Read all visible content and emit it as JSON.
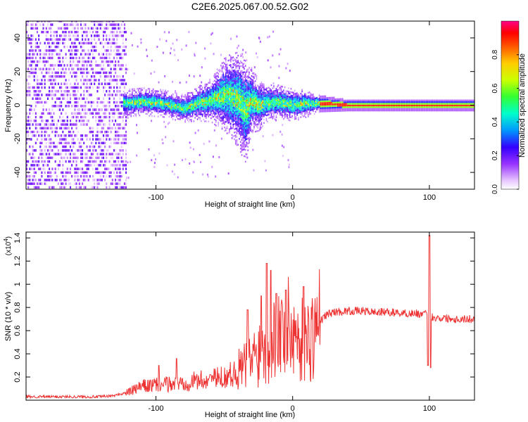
{
  "figure_title": "C2E6.2025.067.00.52.G02",
  "chart_data": [
    {
      "type": "heatmap",
      "xlabel": "Height of straight line (km)",
      "ylabel": "Frequency (Hz)",
      "xlim": [
        -195,
        133
      ],
      "ylim": [
        -50,
        50
      ],
      "x_ticks": [
        -100,
        0,
        100
      ],
      "y_ticks": [
        -40,
        -20,
        0,
        20,
        40
      ],
      "colorbar": {
        "label": "Normalized spectral amplitude",
        "range": [
          0,
          1
        ],
        "ticks": [
          0.0,
          0.2,
          0.4,
          0.6,
          0.8
        ],
        "tick_labels": [
          "0.0",
          "0.2",
          "0.4",
          "0.6",
          "0.8"
        ]
      },
      "band_center_hz": [
        [
          -125,
          1
        ],
        [
          -110,
          2
        ],
        [
          -95,
          1
        ],
        [
          -80,
          -2
        ],
        [
          -70,
          1
        ],
        [
          -60,
          3
        ],
        [
          -50,
          6
        ],
        [
          -40,
          4
        ],
        [
          -35,
          -3
        ],
        [
          -30,
          3
        ],
        [
          -25,
          0
        ],
        [
          -20,
          1
        ],
        [
          -10,
          2
        ],
        [
          0,
          0
        ],
        [
          10,
          1
        ],
        [
          20,
          1
        ],
        [
          40,
          0
        ],
        [
          60,
          0
        ],
        [
          80,
          0
        ],
        [
          100,
          0
        ],
        [
          133,
          0
        ]
      ],
      "band_halfwidth_hz": [
        [
          -125,
          5
        ],
        [
          -100,
          5
        ],
        [
          -80,
          5
        ],
        [
          -60,
          8
        ],
        [
          -50,
          14
        ],
        [
          -40,
          18
        ],
        [
          -35,
          20
        ],
        [
          -30,
          12
        ],
        [
          -20,
          7
        ],
        [
          -10,
          6
        ],
        [
          0,
          6
        ],
        [
          10,
          5
        ],
        [
          20,
          3
        ],
        [
          40,
          2
        ],
        [
          100,
          2
        ],
        [
          133,
          2
        ]
      ]
    },
    {
      "type": "line",
      "xlabel": "Height of straight line (km)",
      "ylabel": "SNR (10 * v/v)",
      "y_multiplier": "(x10",
      "y_multiplier_exp": "4",
      "xlim": [
        -195,
        133
      ],
      "ylim": [
        0,
        1.45
      ],
      "x_ticks": [
        -100,
        0,
        100
      ],
      "y_ticks": [
        0.2,
        0.4,
        0.6,
        0.8,
        1.0,
        1.2,
        1.4
      ],
      "y_tick_labels": [
        "0.2",
        "0.4",
        "0.6",
        "0.8",
        "1",
        "1.2",
        "1.4"
      ],
      "series": [
        {
          "color": "#ee3333",
          "x": [
            -195,
            -180,
            -160,
            -140,
            -130,
            -120,
            -110,
            -100,
            -90,
            -80,
            -70,
            -60,
            -50,
            -40,
            -35,
            -30,
            -25,
            -20,
            -15,
            -10,
            -5,
            0,
            5,
            10,
            15,
            20,
            25,
            30,
            40,
            50,
            60,
            70,
            80,
            90,
            95,
            98,
            100,
            102,
            105,
            110,
            120,
            133
          ],
          "y": [
            0.03,
            0.03,
            0.03,
            0.03,
            0.04,
            0.07,
            0.12,
            0.13,
            0.14,
            0.15,
            0.17,
            0.18,
            0.2,
            0.25,
            0.3,
            0.35,
            0.42,
            0.45,
            0.5,
            0.58,
            0.62,
            0.6,
            0.52,
            0.5,
            0.58,
            0.68,
            0.74,
            0.76,
            0.77,
            0.77,
            0.76,
            0.76,
            0.75,
            0.75,
            0.74,
            0.74,
            0.72,
            0.72,
            0.71,
            0.71,
            0.7,
            0.7
          ]
        }
      ],
      "spikes": [
        {
          "x": -98,
          "y": 0.3
        },
        {
          "x": -85,
          "y": 0.36
        },
        {
          "x": -60,
          "y": 0.22
        },
        {
          "x": -33,
          "y": 0.78
        },
        {
          "x": -23,
          "y": 0.9
        },
        {
          "x": -19,
          "y": 1.18
        },
        {
          "x": -16,
          "y": 1.12
        },
        {
          "x": -12,
          "y": 0.92
        },
        {
          "x": -5,
          "y": 0.95
        },
        {
          "x": 8,
          "y": 0.98
        },
        {
          "x": 100,
          "y": 1.42
        },
        {
          "x": 101,
          "y": 0.28
        },
        {
          "x": 99,
          "y": 0.3
        }
      ]
    }
  ]
}
